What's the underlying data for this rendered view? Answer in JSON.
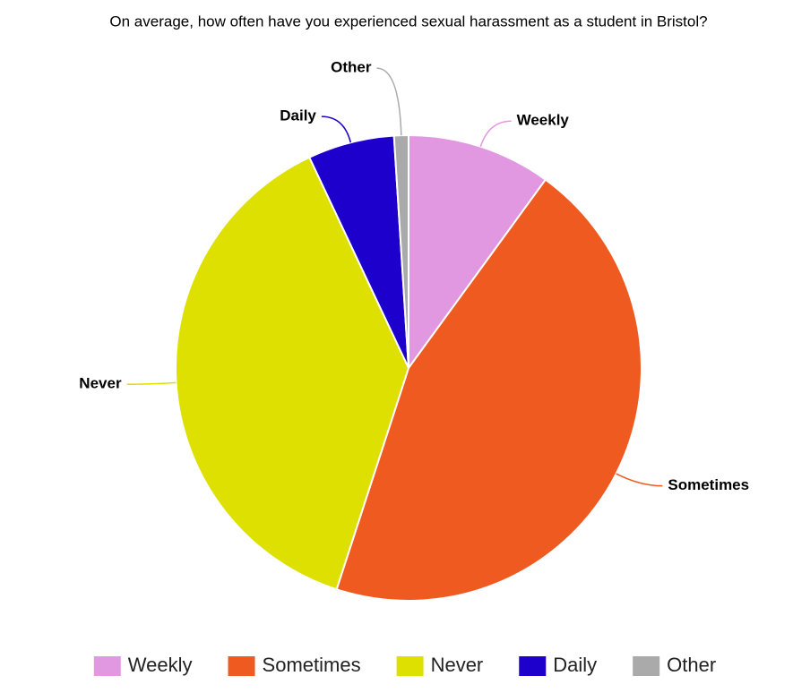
{
  "chart_data": {
    "type": "pie",
    "title": "On average, how often have you experienced sexual harassment as a student in Bristol?",
    "categories": [
      "Weekly",
      "Sometimes",
      "Never",
      "Daily",
      "Other"
    ],
    "values": [
      10,
      45,
      38,
      6,
      1
    ],
    "colors": [
      "#e298e0",
      "#ee5a20",
      "#dde000",
      "#1e00cc",
      "#aaaaaa"
    ],
    "legend": "bottom"
  }
}
